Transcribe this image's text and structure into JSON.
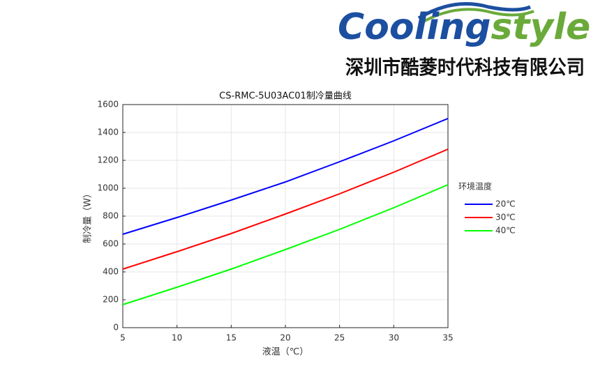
{
  "header": {
    "logo_parts": [
      "Cooling",
      "style"
    ],
    "company": "深圳市酷菱时代科技有限公司"
  },
  "chart_data": {
    "type": "line",
    "title": "CS-RMC-5U03AC01制冷量曲线",
    "x_label": "液温（℃）",
    "y_label": "制冷量（W）",
    "x": [
      5,
      10,
      15,
      20,
      25,
      30,
      35
    ],
    "series": [
      {
        "name": "20℃",
        "color": "#0000ff",
        "values": [
          670,
          790,
          915,
          1045,
          1190,
          1340,
          1500
        ]
      },
      {
        "name": "30℃",
        "color": "#ff0000",
        "values": [
          420,
          545,
          675,
          815,
          960,
          1115,
          1280
        ]
      },
      {
        "name": "40℃",
        "color": "#00ff00",
        "values": [
          165,
          290,
          420,
          560,
          705,
          860,
          1025
        ]
      }
    ],
    "xlim": [
      5,
      35
    ],
    "xticks": [
      5,
      10,
      15,
      20,
      25,
      30,
      35
    ],
    "ylim": [
      0,
      1600
    ],
    "yticks": [
      0,
      200,
      400,
      600,
      800,
      1000,
      1200,
      1400,
      1600
    ],
    "grid": true,
    "legend_title": "环境温度",
    "legend_position": "right"
  }
}
